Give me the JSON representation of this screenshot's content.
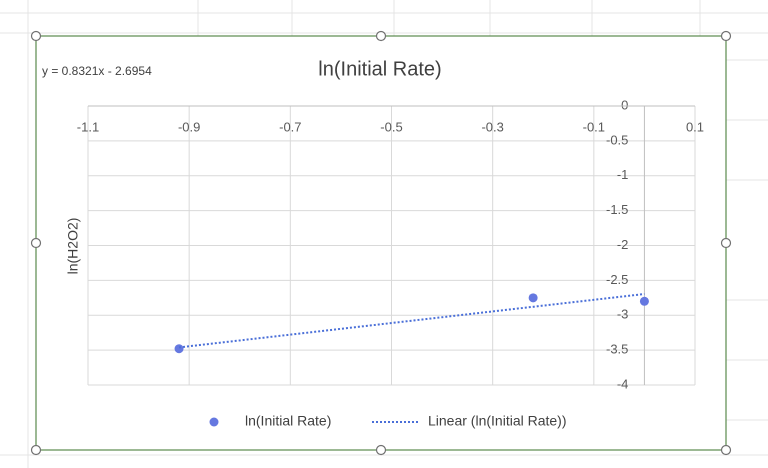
{
  "chart_data": {
    "type": "scatter",
    "title": "ln(Initial Rate)",
    "y_label": "ln(H2O2)",
    "series": [
      {
        "name": "ln(Initial Rate)",
        "color": "#6578e0",
        "x": [
          -0.92,
          -0.22,
          0
        ],
        "values": [
          -3.48,
          -2.75,
          -2.8
        ]
      }
    ],
    "trendline": {
      "name": "Linear (ln(Initial Rate))",
      "color": "#4a6fd8",
      "slope": 0.8321,
      "intercept": -2.6954,
      "equation": "y = 0.8321x - 2.6954"
    },
    "xlim": [
      -1.1,
      0.1
    ],
    "xticks": [
      -1.1,
      -0.9,
      -0.7,
      -0.5,
      -0.3,
      -0.1,
      0.1
    ],
    "ylim": [
      -4,
      0
    ],
    "yticks": [
      0,
      -0.5,
      -1,
      -1.5,
      -2,
      -2.5,
      -3,
      -3.5,
      -4
    ],
    "grid": true,
    "legend": "bottom"
  }
}
